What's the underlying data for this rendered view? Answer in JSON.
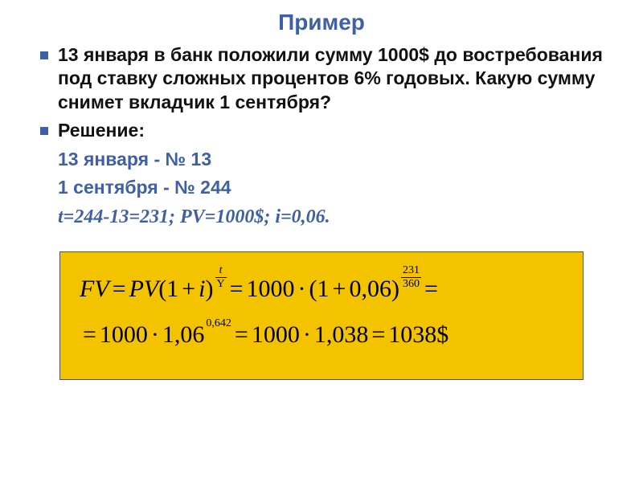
{
  "title": "Пример",
  "bullets": {
    "problem": "13 января в банк положили сумму 1000$ до востребования под ставку сложных процентов 6% годовых. Какую сумму снимет вкладчик 1 сентября?",
    "solution_label": "Решение:",
    "line1": "13 января - № 13",
    "line2": "1 сентября - № 244",
    "line3": "t=244-13=231; PV=1000$;  i=0,06."
  },
  "formula": {
    "r1": {
      "p1": "FV",
      "eq1": "=",
      "p2": "PV",
      "lpar": "(1",
      "plus": "+",
      "i": "i",
      "rpar": ")",
      "exp1_num": "t",
      "exp1_den": "Y",
      "eq2": "=",
      "v1": "1000",
      "m1": "·",
      "lpar2": "(1",
      "plus2": "+",
      "v2": "0,06",
      "rpar2": ")",
      "exp2_num": "231",
      "exp2_den": "360",
      "eq3": "="
    },
    "r2": {
      "eq1": "=",
      "v1": "1000",
      "m1": "·",
      "v2": "1,06",
      "exp": "0,642",
      "eq2": "=",
      "v3": "1000",
      "m2": "·",
      "v4": "1,038",
      "eq3": "=",
      "v5": "1038$"
    }
  },
  "colors": {
    "accent": "#3e60a8",
    "box_bg": "#f4c300",
    "text": "#111111"
  }
}
